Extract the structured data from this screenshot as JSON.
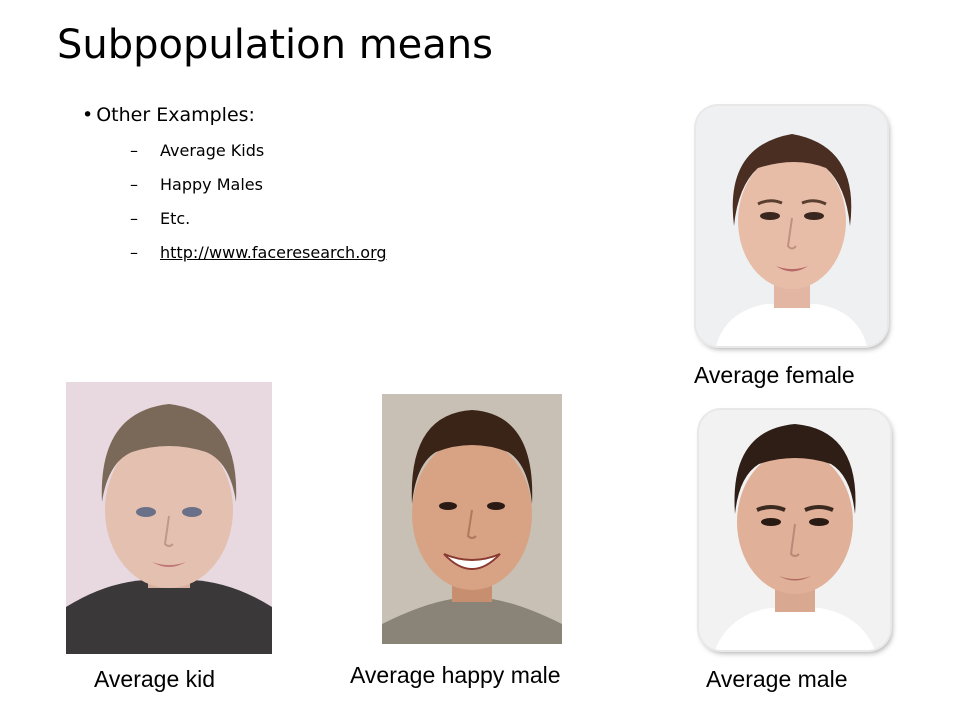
{
  "slide": {
    "title": "Subpopulation means",
    "bullet": "Other Examples:",
    "sub_items": [
      {
        "text": "Average Kids"
      },
      {
        "text": "Happy Males"
      },
      {
        "text": "Etc."
      },
      {
        "text": "http://www.faceresearch.org"
      }
    ]
  },
  "captions": {
    "female": "Average female",
    "kid": "Average kid",
    "happy_male": "Average happy male",
    "male": "Average male"
  },
  "colors": {
    "female_bg": "#eef0f1",
    "kid_bg": "#e8d8e0",
    "happy_bg": "#c8c0b4",
    "male_bg": "#f2f2f2"
  }
}
